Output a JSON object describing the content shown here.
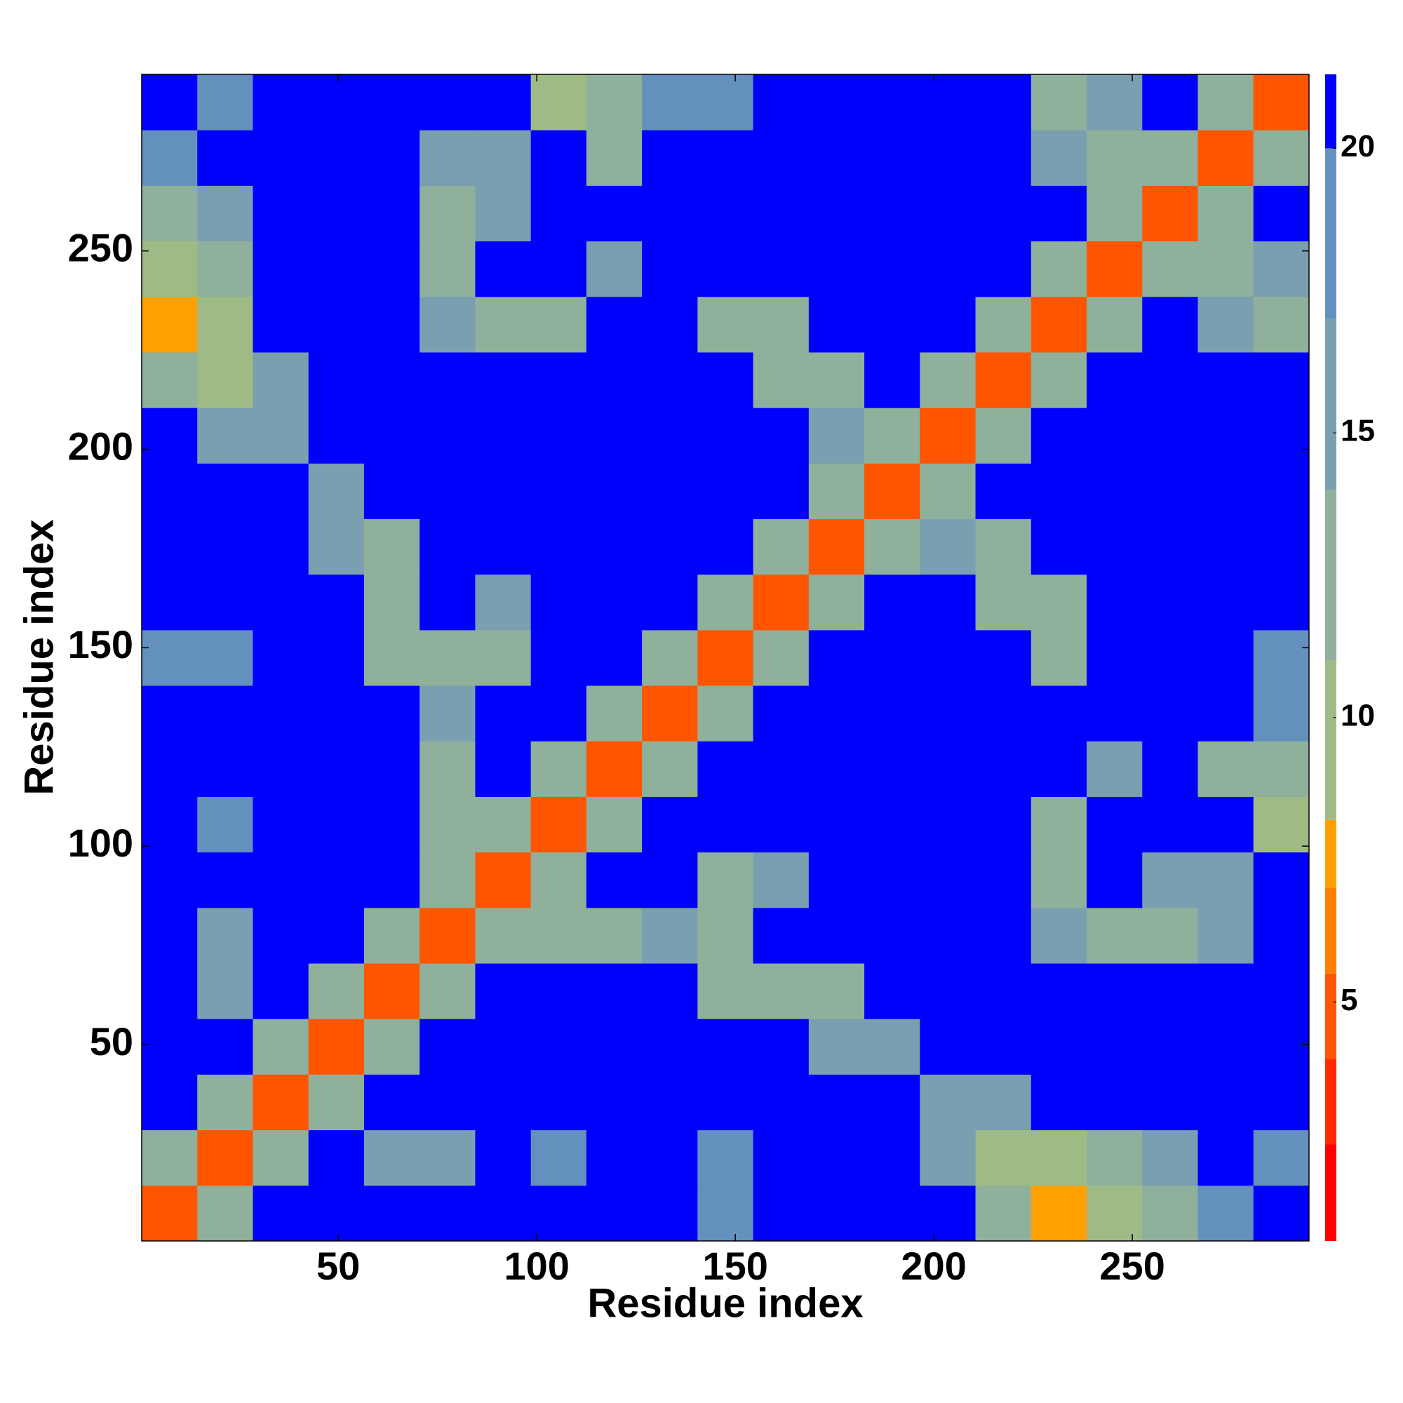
{
  "chart_data": {
    "type": "heatmap",
    "x_label": "Residue index",
    "y_label": "Residue index",
    "xlim": [
      0.5,
      294.5
    ],
    "ylim": [
      0.5,
      294.5
    ],
    "xticks": [
      50,
      100,
      150,
      200,
      250
    ],
    "yticks": [
      50,
      100,
      150,
      200,
      250
    ],
    "bins": [
      0.5,
      14.5,
      28.5,
      42.5,
      56.5,
      70.5,
      84.5,
      98.5,
      112.5,
      126.5,
      140.5,
      154.5,
      168.5,
      182.5,
      196.5,
      210.5,
      224.5,
      238.5,
      252.5,
      266.5,
      280.5,
      294.5
    ],
    "zlim": [
      0.8,
      21.3
    ],
    "zticks": [
      5,
      10,
      15,
      20
    ],
    "colorscale": [
      [
        0.8,
        "#ff0000"
      ],
      [
        2.5,
        "#ff2a00"
      ],
      [
        4,
        "#ff5500"
      ],
      [
        5.5,
        "#ff7f00"
      ],
      [
        7,
        "#ffa000"
      ],
      [
        8.2,
        "#9fbb85"
      ],
      [
        11,
        "#8fb09a"
      ],
      [
        14,
        "#7a9fb0"
      ],
      [
        17,
        "#6490be"
      ],
      [
        20,
        "#0000ff"
      ]
    ],
    "z": [
      [
        4,
        12,
        21,
        21,
        21,
        21,
        21,
        21,
        21,
        21,
        17,
        21,
        21,
        21,
        21,
        13,
        8,
        9,
        13,
        17,
        21
      ],
      [
        12,
        4,
        12,
        21,
        14,
        14,
        21,
        18,
        21,
        21,
        17,
        21,
        21,
        21,
        14,
        10,
        10,
        11,
        14,
        21,
        17
      ],
      [
        21,
        12,
        4,
        12,
        21,
        21,
        21,
        21,
        21,
        21,
        21,
        21,
        21,
        21,
        16,
        14,
        21,
        21,
        21,
        21,
        21
      ],
      [
        21,
        21,
        12,
        4,
        12,
        21,
        21,
        21,
        21,
        21,
        21,
        21,
        14,
        15,
        21,
        21,
        21,
        21,
        21,
        21,
        21
      ],
      [
        21,
        14,
        21,
        12,
        4,
        12,
        21,
        21,
        21,
        21,
        12,
        12,
        13,
        21,
        21,
        21,
        21,
        21,
        21,
        21,
        21
      ],
      [
        21,
        14,
        21,
        21,
        12,
        4,
        12,
        13,
        12,
        15,
        12,
        21,
        21,
        21,
        21,
        21,
        15,
        12,
        13,
        14,
        21
      ],
      [
        21,
        21,
        21,
        21,
        21,
        12,
        4,
        12,
        21,
        21,
        11,
        14,
        21,
        21,
        21,
        21,
        11,
        21,
        15,
        15,
        21
      ],
      [
        21,
        18,
        21,
        21,
        21,
        13,
        12,
        4,
        12,
        21,
        21,
        21,
        21,
        21,
        21,
        21,
        13,
        21,
        21,
        21,
        10
      ],
      [
        21,
        21,
        21,
        21,
        21,
        12,
        21,
        12,
        4,
        12,
        21,
        21,
        21,
        21,
        21,
        21,
        21,
        14,
        21,
        11,
        12
      ],
      [
        21,
        21,
        21,
        21,
        21,
        15,
        21,
        21,
        12,
        4,
        12,
        21,
        21,
        21,
        21,
        21,
        21,
        21,
        21,
        21,
        18
      ],
      [
        17,
        17,
        21,
        21,
        12,
        12,
        11,
        21,
        21,
        12,
        4,
        12,
        21,
        21,
        21,
        21,
        12,
        21,
        21,
        21,
        18
      ],
      [
        21,
        21,
        21,
        21,
        12,
        21,
        14,
        21,
        21,
        21,
        12,
        4,
        12,
        21,
        21,
        12,
        13,
        21,
        21,
        21,
        21
      ],
      [
        21,
        21,
        21,
        14,
        13,
        21,
        21,
        21,
        21,
        21,
        21,
        12,
        4,
        12,
        14,
        12,
        21,
        21,
        21,
        21,
        21
      ],
      [
        21,
        21,
        21,
        15,
        21,
        21,
        21,
        21,
        21,
        21,
        21,
        21,
        12,
        4,
        11,
        21,
        21,
        21,
        21,
        21,
        21
      ],
      [
        21,
        14,
        16,
        21,
        21,
        21,
        21,
        21,
        21,
        21,
        21,
        21,
        14,
        11,
        4,
        12,
        21,
        21,
        21,
        21,
        21
      ],
      [
        13,
        10,
        14,
        21,
        21,
        21,
        21,
        21,
        21,
        21,
        21,
        12,
        12,
        21,
        12,
        4,
        12,
        21,
        21,
        21,
        21
      ],
      [
        8,
        10,
        21,
        21,
        21,
        15,
        11,
        13,
        21,
        21,
        12,
        13,
        21,
        21,
        21,
        12,
        4,
        12,
        21,
        14,
        13
      ],
      [
        9,
        11,
        21,
        21,
        21,
        12,
        21,
        21,
        14,
        21,
        21,
        21,
        21,
        21,
        21,
        21,
        12,
        4,
        12,
        12,
        14
      ],
      [
        13,
        14,
        21,
        21,
        21,
        13,
        15,
        21,
        21,
        21,
        21,
        21,
        21,
        21,
        21,
        21,
        21,
        12,
        4,
        12,
        21
      ],
      [
        17,
        21,
        21,
        21,
        21,
        14,
        15,
        21,
        11,
        21,
        21,
        21,
        21,
        21,
        21,
        21,
        14,
        12,
        12,
        4,
        12
      ],
      [
        21,
        17,
        21,
        21,
        21,
        21,
        21,
        10,
        12,
        18,
        18,
        21,
        21,
        21,
        21,
        21,
        13,
        14,
        21,
        12,
        4
      ]
    ]
  }
}
